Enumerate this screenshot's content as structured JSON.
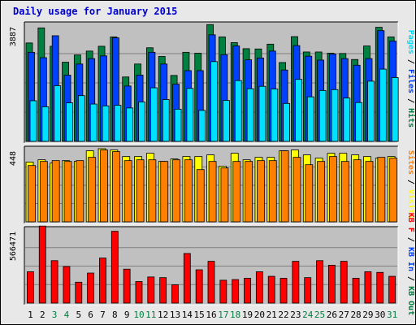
{
  "title": "Daily usage for January 2015",
  "chart_data": {
    "type": "bar",
    "categories": [
      "1",
      "2",
      "3",
      "4",
      "5",
      "6",
      "7",
      "8",
      "9",
      "10",
      "11",
      "12",
      "13",
      "14",
      "15",
      "16",
      "17",
      "18",
      "19",
      "20",
      "21",
      "22",
      "23",
      "24",
      "25",
      "26",
      "27",
      "28",
      "29",
      "30",
      "31"
    ],
    "weekend_days": [
      "3",
      "4",
      "10",
      "11",
      "17",
      "18",
      "24",
      "25",
      "31"
    ],
    "panels": [
      {
        "name": "hits-files-pages",
        "max_label": "3887",
        "ymax": 3887,
        "series": [
          {
            "name": "Hits",
            "color": "#008040",
            "values": [
              3270,
              3770,
              3160,
              2630,
              2870,
              3000,
              3160,
              3470,
              2140,
              2570,
              3110,
              2820,
              2190,
              2960,
              2930,
              3880,
              3470,
              3280,
              3080,
              3070,
              3230,
              2620,
              3480,
              2970,
              2970,
              2930,
              2920,
              2720,
              3170,
              3790,
              3470
            ]
          },
          {
            "name": "Files",
            "color": "#0040ff",
            "values": [
              2960,
              2780,
              3510,
              2200,
              2570,
              2750,
              2840,
              3440,
              1840,
              2200,
              2960,
              2570,
              1900,
              2350,
              2350,
              3540,
              2880,
              3170,
              2710,
              2770,
              3000,
              2370,
              3180,
              2830,
              2700,
              2900,
              2750,
              2530,
              2750,
              3680,
              3330
            ]
          },
          {
            "name": "Pages",
            "color": "#00e0ff",
            "values": [
              1350,
              1150,
              1850,
              1280,
              1520,
              1240,
              1180,
              1200,
              1110,
              1310,
              1780,
              1390,
              1070,
              1760,
              1030,
              2650,
              1360,
              2020,
              1750,
              1830,
              1740,
              1260,
              2060,
              1480,
              1690,
              1720,
              1440,
              1290,
              2000,
              2400,
              2120
            ]
          }
        ]
      },
      {
        "name": "visits-sites",
        "max_label": "448",
        "ymax": 448,
        "series": [
          {
            "name": "Visits",
            "color": "#ffff00",
            "values": [
              366,
              380,
              360,
              375,
              370,
              435,
              448,
              440,
              400,
              400,
              420,
              370,
              385,
              400,
              400,
              410,
              340,
              420,
              380,
              395,
              395,
              435,
              440,
              410,
              390,
              420,
              420,
              410,
              400,
              390,
              400
            ]
          },
          {
            "name": "Sites",
            "color": "#ff8000",
            "values": [
              345,
              370,
              375,
              370,
              375,
              395,
              440,
              430,
              375,
              380,
              380,
              370,
              380,
              380,
              320,
              370,
              330,
              370,
              370,
              375,
              375,
              435,
              395,
              350,
              370,
              400,
              370,
              380,
              370,
              395,
              390
            ]
          }
        ]
      },
      {
        "name": "kbytes",
        "max_label": "566471",
        "ymax": 566471,
        "series": [
          {
            "name": "KBytes",
            "color": "#ff0000",
            "values": [
              240000,
              590000,
              325000,
              280000,
              160000,
              230000,
              345000,
              550000,
              260000,
              165000,
              200000,
              195000,
              140000,
              380000,
              255000,
              320000,
              175000,
              180000,
              190000,
              240000,
              205000,
              190000,
              320000,
              195000,
              325000,
              290000,
              320000,
              190000,
              240000,
              235000,
              205000
            ]
          }
        ]
      }
    ],
    "legend_top": [
      {
        "label": "Pages",
        "color": "#00e0ff"
      },
      {
        "label": " / ",
        "color": "#000000"
      },
      {
        "label": "Files",
        "color": "#0040ff"
      },
      {
        "label": " / ",
        "color": "#000000"
      },
      {
        "label": "Hits",
        "color": "#008040"
      }
    ],
    "legend_mid": [
      {
        "label": "Sites",
        "color": "#ff8000"
      },
      {
        "label": " / ",
        "color": "#000000"
      },
      {
        "label": "Visits",
        "color": "#ffff00"
      }
    ],
    "legend_bottom": [
      {
        "label": "KB F",
        "color": "#ff0000"
      },
      {
        "label": " / ",
        "color": "#000000"
      },
      {
        "label": "KB In",
        "color": "#0040ff"
      },
      {
        "label": " / ",
        "color": "#000000"
      },
      {
        "label": "KB Out",
        "color": "#008040"
      }
    ],
    "colors": {
      "plot_bg": "#c0c0c0",
      "grid": "#808080",
      "weekday_label": "#000000",
      "weekend_label": "#008040"
    }
  }
}
